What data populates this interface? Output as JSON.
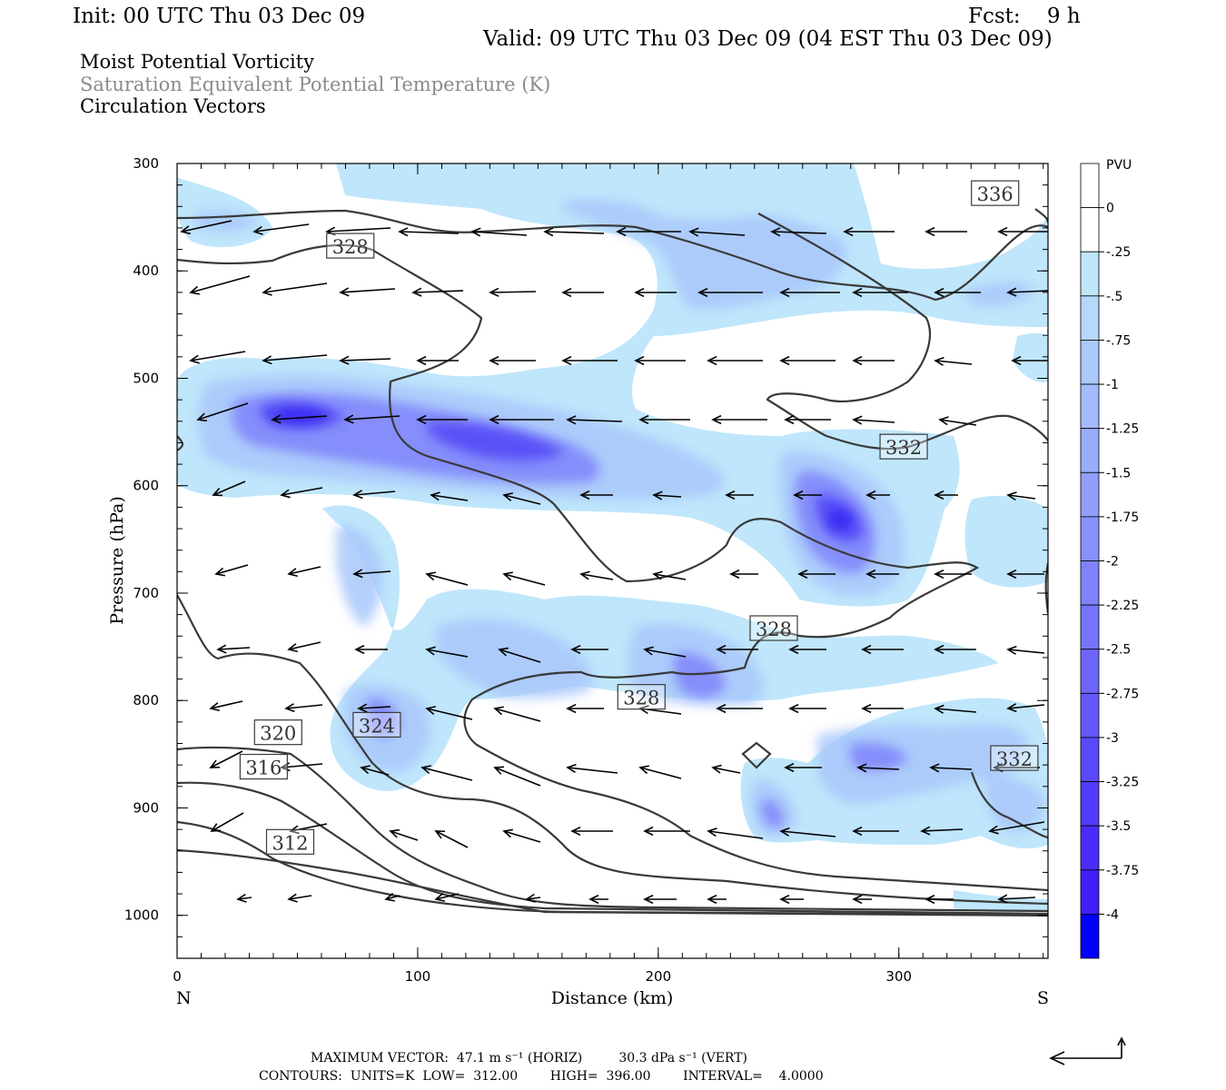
{
  "header": {
    "init": "Init: 00 UTC Thu 03 Dec 09",
    "fcst": "Fcst:    9 h",
    "valid": "Valid: 09 UTC Thu 03 Dec 09 (04 EST Thu 03 Dec 09)",
    "field1": "Moist Potential Vorticity",
    "field2": "Saturation Equivalent Potential Temperature (K)",
    "field3": "Circulation Vectors"
  },
  "footer": {
    "max_vector": "MAXIMUM VECTOR:  47.1 m s⁻¹ (HORIZ)         30.3 dPa s⁻¹ (VERT)",
    "contours": "CONTOURS:  UNITS=K  LOW=  312.00        HIGH=  396.00        INTERVAL=    4.0000"
  },
  "chart_data": {
    "type": "contour-cross-section",
    "xlabel": "Distance (km)",
    "ylabel": "Pressure (hPa)",
    "x_ticks": [
      "0",
      "100",
      "200",
      "300"
    ],
    "x_tick_values": [
      0,
      100,
      200,
      300
    ],
    "y_ticks": [
      "300",
      "400",
      "500",
      "600",
      "700",
      "800",
      "900",
      "1000"
    ],
    "y_tick_values": [
      300,
      400,
      500,
      600,
      700,
      800,
      900,
      1000
    ],
    "xlim": [
      0,
      362
    ],
    "ylim": [
      300,
      1040
    ],
    "left_end_label": "N",
    "right_end_label": "S",
    "colorbar": {
      "unit": "PVU",
      "levels": [
        "0",
        "-.25",
        "-.5",
        "-.75",
        "-1",
        "-1.25",
        "-1.5",
        "-1.75",
        "-2",
        "-2.25",
        "-2.5",
        "-2.75",
        "-3",
        "-3.25",
        "-3.5",
        "-3.75",
        "-4"
      ],
      "colors": [
        "#ffffff",
        "#ffffff",
        "#bfe6fb",
        "#b5d8fb",
        "#acc9fb",
        "#a3bbfb",
        "#9aadfb",
        "#919ffb",
        "#8890fb",
        "#7f82fb",
        "#7674fb",
        "#6d66fb",
        "#6458fb",
        "#5b4afb",
        "#523bfb",
        "#492dfb",
        "#401ffb",
        "#0000ff"
      ]
    },
    "contour_labels": [
      {
        "text": "336",
        "x": 340,
        "p": 328
      },
      {
        "text": "328",
        "x": 72,
        "p": 377
      },
      {
        "text": "332",
        "x": 302,
        "p": 564
      },
      {
        "text": "328",
        "x": 248,
        "p": 733
      },
      {
        "text": "328",
        "x": 193,
        "p": 797
      },
      {
        "text": "324",
        "x": 83,
        "p": 823
      },
      {
        "text": "320",
        "x": 42,
        "p": 830
      },
      {
        "text": "316",
        "x": 36,
        "p": 862
      },
      {
        "text": "312",
        "x": 47,
        "p": 932
      },
      {
        "text": "332",
        "x": 348,
        "p": 854
      }
    ]
  }
}
